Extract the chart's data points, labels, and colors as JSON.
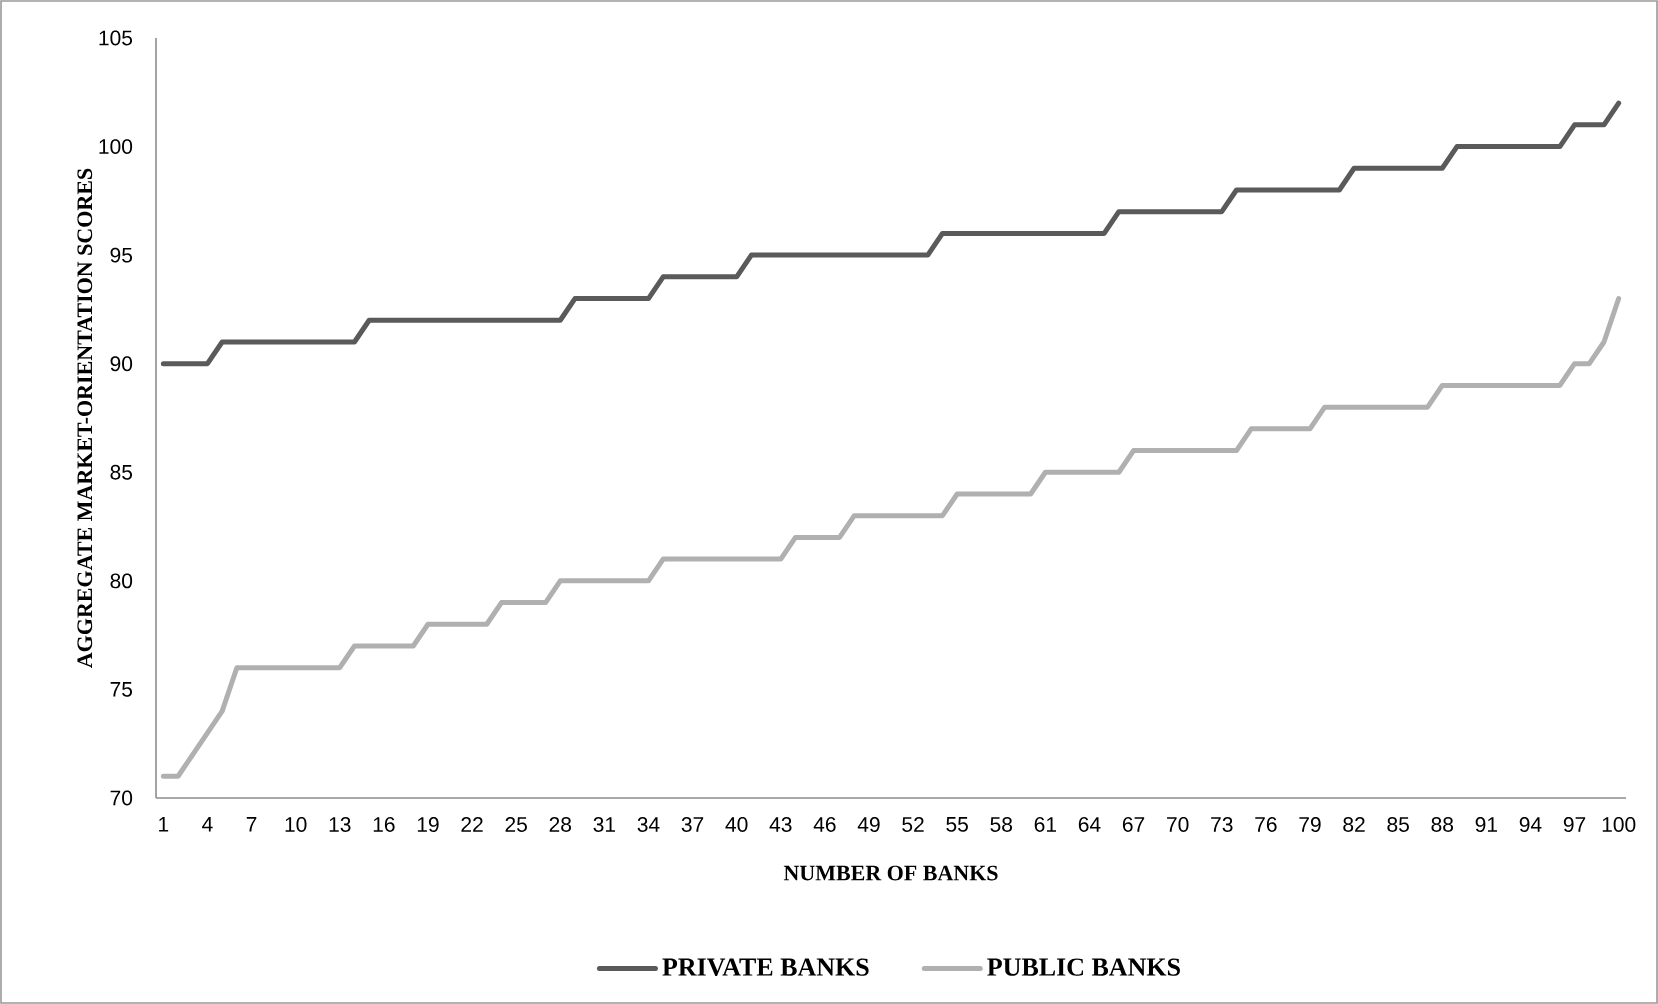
{
  "chart_data": {
    "type": "line",
    "xlabel": "NUMBER OF BANKS",
    "ylabel": "AGGREGATE MARKET-ORIENTATION SCORES",
    "categories": [
      "1",
      null,
      null,
      "4",
      null,
      null,
      "7",
      null,
      null,
      "10",
      null,
      null,
      "13",
      null,
      null,
      "16",
      null,
      null,
      "19",
      null,
      null,
      "22",
      null,
      null,
      "25",
      null,
      null,
      "28",
      null,
      null,
      "31",
      null,
      null,
      "34",
      null,
      null,
      "37",
      null,
      null,
      "40",
      null,
      null,
      "43",
      null,
      null,
      "46",
      null,
      null,
      "49",
      null,
      null,
      "52",
      null,
      null,
      "55",
      null,
      null,
      "58",
      null,
      null,
      "61",
      null,
      null,
      "64",
      null,
      null,
      "67",
      null,
      null,
      "70",
      null,
      null,
      "73",
      null,
      null,
      "76",
      null,
      null,
      "79",
      null,
      null,
      "82",
      null,
      null,
      "85",
      null,
      null,
      "88",
      null,
      null,
      "91",
      null,
      null,
      "94",
      null,
      null,
      "97",
      null,
      null,
      "100"
    ],
    "series": [
      {
        "name": "PRIVATE BANKS",
        "color": "#5a5a5a",
        "values": [
          90,
          90,
          90,
          90,
          91,
          91,
          91,
          91,
          91,
          91,
          91,
          91,
          91,
          91,
          92,
          92,
          92,
          92,
          92,
          92,
          92,
          92,
          92,
          92,
          92,
          92,
          92,
          92,
          93,
          93,
          93,
          93,
          93,
          93,
          94,
          94,
          94,
          94,
          94,
          94,
          95,
          95,
          95,
          95,
          95,
          95,
          95,
          95,
          95,
          95,
          95,
          95,
          95,
          96,
          96,
          96,
          96,
          96,
          96,
          96,
          96,
          96,
          96,
          96,
          96,
          97,
          97,
          97,
          97,
          97,
          97,
          97,
          97,
          98,
          98,
          98,
          98,
          98,
          98,
          98,
          98,
          99,
          99,
          99,
          99,
          99,
          99,
          99,
          100,
          100,
          100,
          100,
          100,
          100,
          100,
          100,
          101,
          101,
          101,
          102
        ]
      },
      {
        "name": "PUBLIC BANKS",
        "color": "#b0b0b0",
        "values": [
          71,
          71,
          72,
          73,
          74,
          76,
          76,
          76,
          76,
          76,
          76,
          76,
          76,
          77,
          77,
          77,
          77,
          77,
          78,
          78,
          78,
          78,
          78,
          79,
          79,
          79,
          79,
          80,
          80,
          80,
          80,
          80,
          80,
          80,
          81,
          81,
          81,
          81,
          81,
          81,
          81,
          81,
          81,
          82,
          82,
          82,
          82,
          83,
          83,
          83,
          83,
          83,
          83,
          83,
          84,
          84,
          84,
          84,
          84,
          84,
          85,
          85,
          85,
          85,
          85,
          85,
          86,
          86,
          86,
          86,
          86,
          86,
          86,
          86,
          87,
          87,
          87,
          87,
          87,
          88,
          88,
          88,
          88,
          88,
          88,
          88,
          88,
          89,
          89,
          89,
          89,
          89,
          89,
          89,
          89,
          89,
          90,
          90,
          91,
          93
        ]
      }
    ],
    "ylim": [
      70,
      105
    ],
    "yticks": [
      70,
      75,
      80,
      85,
      90,
      95,
      100,
      105
    ],
    "legend": "bottom"
  }
}
